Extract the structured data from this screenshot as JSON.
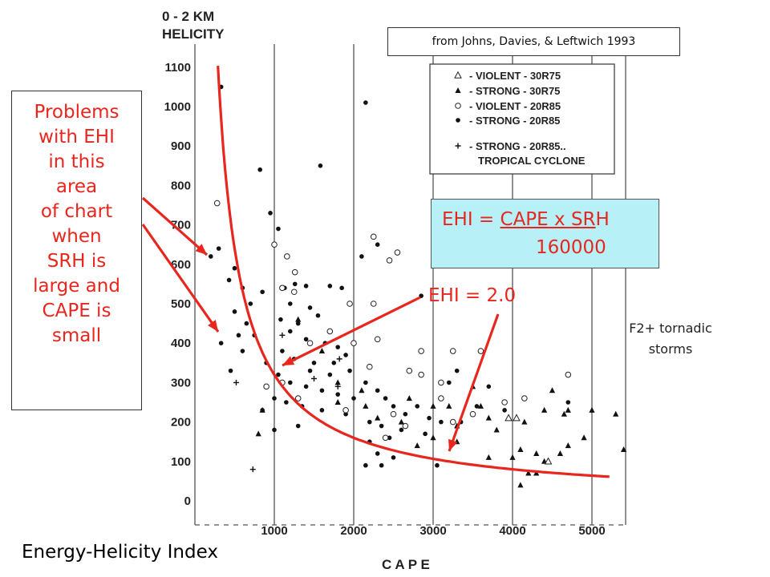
{
  "slide": {
    "title": "Energy-Helicity Index",
    "citation": "from Johns, Davies, & Leftwich 1993",
    "problems_lines": [
      "Problems",
      "with EHI",
      "in this",
      "area",
      "of chart",
      "when",
      "SRH is",
      "large and",
      "CAPE is",
      "small"
    ],
    "formula": {
      "prefix": "EHI = ",
      "numerator_a": "CAPE x SR",
      "numerator_b": "H",
      "denominator": "160000"
    },
    "ehi_label": "EHI = 2.0",
    "storms_note_lines": [
      "F2+ tornadic",
      "storms"
    ]
  },
  "colors": {
    "annotation_red": "#e8261e",
    "formula_box": "#b7f1f7",
    "grid": "#555555"
  },
  "chart_data": {
    "type": "scatter",
    "y_title_lines": [
      "0 - 2 KM",
      "HELICITY"
    ],
    "x_title": "C A P E",
    "xlim": [
      0,
      5400
    ],
    "ylim": [
      -50,
      1150
    ],
    "x_ticks": [
      1000,
      2000,
      3000,
      4000,
      5000
    ],
    "x_tick_labels": [
      "1000",
      "2000",
      "3000",
      "4000",
      "5000"
    ],
    "y_ticks": [
      0,
      100,
      200,
      300,
      400,
      500,
      600,
      700,
      800,
      900,
      1000,
      1100
    ],
    "y_tick_labels": [
      "0",
      "100",
      "200",
      "300",
      "400",
      "500",
      "600",
      "700",
      "800",
      "900",
      "1000",
      "1100"
    ],
    "grid": true,
    "legend_position": "top-right",
    "legend": [
      {
        "symbol": "open-triangle",
        "label": "- VIOLENT  - 30R75"
      },
      {
        "symbol": "filled-triangle",
        "label": "- STRONG   - 30R75"
      },
      {
        "symbol": "open-circle",
        "label": "- VIOLENT  - 20R85"
      },
      {
        "symbol": "filled-circle",
        "label": "- STRONG   - 20R85"
      },
      {
        "symbol": "plus",
        "label": "- STRONG   - 20R85.."
      },
      {
        "symbol": "none",
        "label": "TROPICAL CYCLONE"
      }
    ],
    "ehi_curve": {
      "label": "EHI = 2.0",
      "constant": 320000
    },
    "series": [
      {
        "symbol": "filled-circle",
        "points": [
          [
            330,
            1050
          ],
          [
            2150,
            1010
          ],
          [
            820,
            840
          ],
          [
            1580,
            850
          ],
          [
            950,
            730
          ],
          [
            1050,
            690
          ],
          [
            300,
            640
          ],
          [
            200,
            620
          ],
          [
            500,
            590
          ],
          [
            430,
            560
          ],
          [
            600,
            540
          ],
          [
            850,
            530
          ],
          [
            700,
            500
          ],
          [
            500,
            480
          ],
          [
            650,
            450
          ],
          [
            550,
            420
          ],
          [
            330,
            400
          ],
          [
            1130,
            540
          ],
          [
            1260,
            550
          ],
          [
            1400,
            545
          ],
          [
            1700,
            545
          ],
          [
            1850,
            540
          ],
          [
            1200,
            500
          ],
          [
            1450,
            490
          ],
          [
            1080,
            460
          ],
          [
            1300,
            450
          ],
          [
            1550,
            470
          ],
          [
            1200,
            430
          ],
          [
            1400,
            410
          ],
          [
            1640,
            400
          ],
          [
            1800,
            390
          ],
          [
            1900,
            370
          ],
          [
            1100,
            380
          ],
          [
            1250,
            360
          ],
          [
            1500,
            350
          ],
          [
            1750,
            350
          ],
          [
            1950,
            330
          ],
          [
            1050,
            320
          ],
          [
            1200,
            300
          ],
          [
            1400,
            290
          ],
          [
            1600,
            280
          ],
          [
            1800,
            270
          ],
          [
            1000,
            260
          ],
          [
            1150,
            250
          ],
          [
            1350,
            240
          ],
          [
            1600,
            230
          ],
          [
            1900,
            220
          ],
          [
            2000,
            260
          ],
          [
            2150,
            300
          ],
          [
            2300,
            280
          ],
          [
            2400,
            260
          ],
          [
            2500,
            240
          ],
          [
            2650,
            220
          ],
          [
            2800,
            240
          ],
          [
            2950,
            210
          ],
          [
            3100,
            200
          ],
          [
            2200,
            200
          ],
          [
            2350,
            190
          ],
          [
            2600,
            180
          ],
          [
            2900,
            170
          ],
          [
            2450,
            160
          ],
          [
            2200,
            150
          ],
          [
            2300,
            120
          ],
          [
            2500,
            110
          ],
          [
            2150,
            90
          ],
          [
            2350,
            90
          ],
          [
            3050,
            90
          ],
          [
            3200,
            300
          ],
          [
            3300,
            330
          ],
          [
            3700,
            290
          ],
          [
            3550,
            240
          ],
          [
            3350,
            200
          ],
          [
            3900,
            230
          ],
          [
            4700,
            250
          ],
          [
            2850,
            520
          ],
          [
            2100,
            620
          ],
          [
            2300,
            650
          ],
          [
            1700,
            320
          ],
          [
            1450,
            330
          ],
          [
            1300,
            190
          ],
          [
            1000,
            180
          ],
          [
            850,
            230
          ],
          [
            900,
            350
          ],
          [
            750,
            420
          ],
          [
            600,
            380
          ],
          [
            450,
            330
          ]
        ]
      },
      {
        "symbol": "open-circle",
        "points": [
          [
            280,
            755
          ],
          [
            1000,
            650
          ],
          [
            1160,
            620
          ],
          [
            1260,
            580
          ],
          [
            1250,
            530
          ],
          [
            1100,
            540
          ],
          [
            2250,
            670
          ],
          [
            2450,
            610
          ],
          [
            2550,
            630
          ],
          [
            2250,
            500
          ],
          [
            1950,
            500
          ],
          [
            1700,
            430
          ],
          [
            2000,
            400
          ],
          [
            2850,
            380
          ],
          [
            3250,
            380
          ],
          [
            3600,
            380
          ],
          [
            2300,
            410
          ],
          [
            2850,
            320
          ],
          [
            3100,
            300
          ],
          [
            2700,
            330
          ],
          [
            3100,
            260
          ],
          [
            3500,
            220
          ],
          [
            3900,
            250
          ],
          [
            4150,
            260
          ],
          [
            4700,
            320
          ],
          [
            1450,
            400
          ],
          [
            2200,
            340
          ],
          [
            1100,
            300
          ],
          [
            1300,
            260
          ],
          [
            900,
            290
          ],
          [
            1900,
            230
          ],
          [
            2500,
            220
          ],
          [
            3250,
            200
          ],
          [
            2650,
            190
          ],
          [
            2400,
            160
          ]
        ]
      },
      {
        "symbol": "filled-triangle",
        "points": [
          [
            1300,
            460
          ],
          [
            1600,
            380
          ],
          [
            1800,
            300
          ],
          [
            2100,
            280
          ],
          [
            2150,
            240
          ],
          [
            2300,
            210
          ],
          [
            2700,
            260
          ],
          [
            3000,
            240
          ],
          [
            3200,
            240
          ],
          [
            3500,
            290
          ],
          [
            3600,
            240
          ],
          [
            3300,
            190
          ],
          [
            3700,
            210
          ],
          [
            4150,
            200
          ],
          [
            4400,
            230
          ],
          [
            4500,
            280
          ],
          [
            4650,
            220
          ],
          [
            4700,
            230
          ],
          [
            5000,
            230
          ],
          [
            3800,
            180
          ],
          [
            3300,
            150
          ],
          [
            2800,
            140
          ],
          [
            4100,
            130
          ],
          [
            4300,
            120
          ],
          [
            4600,
            120
          ],
          [
            4700,
            140
          ],
          [
            3700,
            110
          ],
          [
            4000,
            110
          ],
          [
            4200,
            70
          ],
          [
            4400,
            100
          ],
          [
            5300,
            220
          ],
          [
            5400,
            130
          ],
          [
            4100,
            40
          ],
          [
            4300,
            70
          ],
          [
            850,
            230
          ],
          [
            800,
            170
          ],
          [
            1800,
            250
          ],
          [
            2600,
            200
          ],
          [
            3000,
            160
          ],
          [
            4900,
            160
          ]
        ]
      },
      {
        "symbol": "open-triangle",
        "points": [
          [
            3950,
            210
          ],
          [
            4050,
            210
          ],
          [
            4450,
            100
          ]
        ]
      },
      {
        "symbol": "plus",
        "points": [
          [
            520,
            300
          ],
          [
            1100,
            420
          ],
          [
            1500,
            310
          ],
          [
            1820,
            360
          ],
          [
            730,
            80
          ],
          [
            1800,
            290
          ]
        ]
      }
    ]
  }
}
